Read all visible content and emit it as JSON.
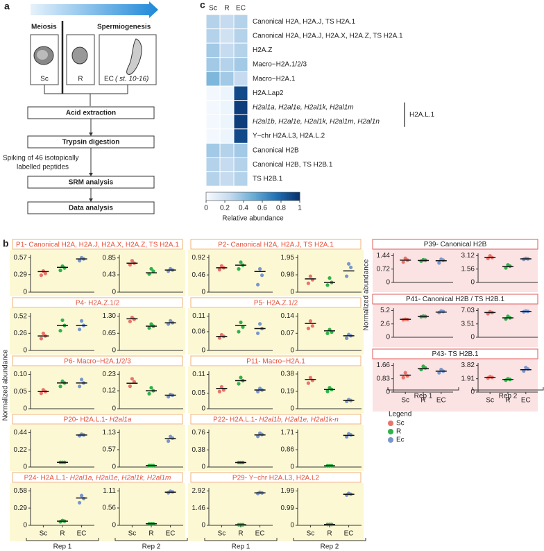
{
  "panel_a": {
    "label": "a",
    "stages": [
      "Meiosis",
      "Spermiogenesis"
    ],
    "cells": [
      "Sc",
      "R",
      "EC"
    ],
    "cell_note": "( st. 10-16)",
    "steps": [
      "Acid extraction",
      "Trypsin digestion",
      "SRM analysis",
      "Data analysis"
    ],
    "spiking": [
      "Spiking of 46 isotopically",
      "labelled peptides"
    ]
  },
  "heatmap": {
    "label": "c",
    "columns": [
      "Sc",
      "R",
      "EC"
    ],
    "rows": [
      {
        "label": "Canonical H2A, H2A.J, TS H2A.1",
        "values": [
          0.3,
          0.25,
          0.3
        ]
      },
      {
        "label": "Canonical H2A, H2A.J, H2A.X, H2A.Z, TS H2A.1",
        "values": [
          0.3,
          0.2,
          0.3
        ]
      },
      {
        "label": "H2A.Z",
        "values": [
          0.35,
          0.25,
          0.3
        ]
      },
      {
        "label": "Macro−H2A.1/2/3",
        "values": [
          0.35,
          0.3,
          0.35
        ]
      },
      {
        "label": "Macro−H2A.1",
        "values": [
          0.45,
          0.35,
          0.25
        ]
      },
      {
        "label": "H2A.Lap2",
        "values": [
          0.02,
          0.05,
          0.9
        ]
      },
      {
        "label": "H2al1a, H2al1e, H2al1k, H2al1m",
        "italic": true,
        "values": [
          0.02,
          0.05,
          0.95
        ]
      },
      {
        "label": "H2al1b, H2al1e, H2al1k, H2al1m, H2al1n",
        "italic": true,
        "values": [
          0.02,
          0.05,
          0.95
        ]
      },
      {
        "label": "Y−chr H2A.L3, H2A.L.2",
        "values": [
          0.02,
          0.05,
          0.9
        ]
      },
      {
        "label": "Canonical H2B",
        "values": [
          0.35,
          0.3,
          0.35
        ]
      },
      {
        "label": "Canonical H2B, TS H2B.1",
        "values": [
          0.3,
          0.25,
          0.3
        ]
      },
      {
        "label": "TS H2B.1",
        "values": [
          0.3,
          0.25,
          0.3
        ]
      }
    ],
    "bracket": {
      "label": "H2A.L.1",
      "rows": [
        6,
        7
      ]
    },
    "colorbar": {
      "title": "Relative abundance",
      "lim": [
        0,
        1
      ],
      "ticks": [
        0,
        0.2,
        0.4,
        0.6,
        0.8,
        1
      ],
      "colormap": [
        "#f7fbff",
        "#c6dbef",
        "#6baed6",
        "#2171b5",
        "#08306b"
      ]
    }
  },
  "panel_b": {
    "label": "b",
    "y_label": "Normalized abundance",
    "categories": [
      "Sc",
      "R",
      "EC"
    ],
    "replicates": [
      "Rep 1",
      "Rep 2"
    ],
    "legend": {
      "title": "Legend",
      "entries": [
        {
          "name": "Sc",
          "color": "#e8746a"
        },
        {
          "name": "R",
          "color": "#2fb24a"
        },
        {
          "name": "Ec",
          "color": "#7a96cc"
        }
      ]
    },
    "groups": [
      {
        "title": "P1- Canonical H2A, H2A.J, H2A.X, H2A.Z, TS H2A.1",
        "panels": [
          {
            "ylim": [
              0,
              0.62
            ],
            "yticks": [
              0,
              0.29,
              0.57
            ],
            "series": [
              [
                0.28,
                0.31,
                0.35
              ],
              [
                0.36,
                0.4,
                0.43
              ],
              [
                0.52,
                0.55,
                0.57
              ]
            ],
            "means": [
              0.34,
              0.41,
              0.55
            ]
          },
          {
            "ylim": [
              0,
              0.93
            ],
            "yticks": [
              0,
              0.43,
              0.85
            ],
            "series": [
              [
                0.68,
                0.72,
                0.78
              ],
              [
                0.45,
                0.52,
                0.58
              ],
              [
                0.52,
                0.55,
                0.58
              ]
            ],
            "means": [
              0.72,
              0.48,
              0.55
            ]
          }
        ]
      },
      {
        "title": "P2- Canonical H2A, H2A.J, TS H2A.1",
        "panels": [
          {
            "ylim": [
              0,
              1.0
            ],
            "yticks": [
              0,
              0.46,
              0.92
            ],
            "series": [
              [
                0.6,
                0.65,
                0.7
              ],
              [
                0.62,
                0.72,
                0.8
              ],
              [
                0.2,
                0.45,
                0.62
              ]
            ],
            "means": [
              0.65,
              0.72,
              0.55
            ]
          },
          {
            "ylim": [
              0,
              2.12
            ],
            "yticks": [
              0,
              0.98,
              1.95
            ],
            "series": [
              [
                0.5,
                0.7,
                0.9
              ],
              [
                0.4,
                0.55,
                0.8
              ],
              [
                0.9,
                1.4,
                1.6
              ]
            ],
            "means": [
              0.75,
              0.55,
              1.2
            ]
          }
        ]
      },
      {
        "title": "P4- H2A.Z.1/2",
        "panels": [
          {
            "ylim": [
              0,
              0.57
            ],
            "yticks": [
              0,
              0.26,
              0.52
            ],
            "series": [
              [
                0.18,
                0.22,
                0.26
              ],
              [
                0.3,
                0.38,
                0.46
              ],
              [
                0.32,
                0.38,
                0.45
              ]
            ],
            "means": [
              0.22,
              0.38,
              0.38
            ]
          },
          {
            "ylim": [
              0,
              1.42
            ],
            "yticks": [
              0,
              0.65,
              {
                "value": 1.3,
                "label": "1.30"
              }
            ],
            "series": [
              [
                1.1,
                1.18,
                1.25
              ],
              [
                0.85,
                0.92,
                1.0
              ],
              [
                1.0,
                1.05,
                1.12
              ]
            ],
            "means": [
              1.2,
              0.92,
              1.05
            ]
          }
        ]
      },
      {
        "title": "P5- H2A.Z.1/2",
        "panels": [
          {
            "ylim": [
              0,
              0.12
            ],
            "yticks": [
              0,
              0.06,
              0.11
            ],
            "series": [
              [
                0.04,
                0.045,
                0.05
              ],
              [
                0.06,
                0.075,
                0.09
              ],
              [
                0.055,
                0.07,
                0.085
              ]
            ],
            "means": [
              0.045,
              0.08,
              0.07
            ]
          },
          {
            "ylim": [
              0,
              0.153
            ],
            "yticks": [
              0,
              0.07,
              0.14
            ],
            "series": [
              [
                0.09,
                0.1,
                0.12
              ],
              [
                0.07,
                0.075,
                0.085
              ],
              [
                0.05,
                0.06,
                0.065
              ]
            ],
            "means": [
              0.11,
              0.08,
              0.06
            ]
          }
        ]
      },
      {
        "title": "P6- Macro−H2A.1/2/3",
        "panels": [
          {
            "ylim": [
              0,
              0.109
            ],
            "yticks": [
              0,
              0.05,
              {
                "value": 0.1,
                "label": "0.10"
              }
            ],
            "series": [
              [
                0.045,
                0.05,
                0.055
              ],
              [
                0.065,
                0.075,
                0.08
              ],
              [
                0.065,
                0.075,
                0.085
              ]
            ],
            "means": [
              0.05,
              0.075,
              0.075
            ]
          },
          {
            "ylim": [
              0,
              0.25
            ],
            "yticks": [
              0,
              0.12,
              0.23
            ],
            "series": [
              [
                0.15,
                0.18,
                0.2
              ],
              [
                0.1,
                0.12,
                0.14
              ],
              [
                0.08,
                0.09,
                0.095
              ]
            ],
            "means": [
              0.17,
              0.12,
              0.09
            ]
          }
        ]
      },
      {
        "title": "P11- Macro−H2A.1",
        "panels": [
          {
            "ylim": [
              0,
              0.12
            ],
            "yticks": [
              0,
              0.05,
              0.11
            ],
            "series": [
              [
                0.055,
                0.06,
                0.07
              ],
              [
                0.08,
                0.09,
                0.1
              ],
              [
                0.055,
                0.06,
                0.065
              ]
            ],
            "means": [
              0.065,
              0.09,
              0.06
            ]
          },
          {
            "ylim": [
              0,
              0.41
            ],
            "yticks": [
              0,
              0.19,
              0.38
            ],
            "series": [
              [
                0.28,
                0.31,
                0.34
              ],
              [
                0.19,
                0.21,
                0.23
              ],
              [
                0.08,
                0.09,
                0.1
              ]
            ],
            "means": [
              0.32,
              0.21,
              0.09
            ]
          }
        ]
      },
      {
        "title": "P20- H2A.L.1- ",
        "title_italic": "H2al1a",
        "panels": [
          {
            "ylim": [
              0,
              0.48
            ],
            "yticks": [
              0,
              0.22,
              0.44
            ],
            "series": [
              [],
              [
                0.06,
                0.06,
                0.06
              ],
              [
                0.4,
                0.41,
                0.42
              ]
            ],
            "means": [
              null,
              0.06,
              0.41
            ]
          },
          {
            "ylim": [
              0,
              1.23
            ],
            "yticks": [
              0,
              0.57,
              1.13
            ],
            "series": [
              [],
              [
                0.05,
                0.05,
                0.05
              ],
              [
                0.85,
                0.95,
                1.0
              ]
            ],
            "means": [
              null,
              0.05,
              0.93
            ]
          }
        ]
      },
      {
        "title": "P22- H2A.L.1- ",
        "title_italic": "H2al1b, H2al1e, H2al1k-n",
        "panels": [
          {
            "ylim": [
              0,
              0.83
            ],
            "yticks": [
              0,
              0.38,
              0.76
            ],
            "series": [
              [],
              [
                0.1,
                0.1,
                0.1
              ],
              [
                0.68,
                0.72,
                0.75
              ]
            ],
            "means": [
              null,
              0.1,
              0.71
            ]
          },
          {
            "ylim": [
              0,
              1.86
            ],
            "yticks": [
              0,
              0.86,
              1.71
            ],
            "series": [
              [],
              [
                0.06,
                0.06,
                0.06
              ],
              [
                1.5,
                1.6,
                1.65
              ]
            ],
            "means": [
              null,
              0.06,
              1.57
            ]
          }
        ]
      },
      {
        "title": "P24- H2A.L.1- ",
        "title_italic": "H2al1a, H2al1e, H2al1k, H2al1m",
        "panels": [
          {
            "ylim": [
              0,
              0.63
            ],
            "yticks": [
              0,
              0.29,
              0.58
            ],
            "series": [
              [],
              [
                0.06,
                0.07,
                0.08
              ],
              [
                0.38,
                0.45,
                0.5
              ]
            ],
            "means": [
              null,
              0.07,
              0.46
            ]
          },
          {
            "ylim": [
              0,
              1.21
            ],
            "yticks": [
              0,
              0.56,
              1.11
            ],
            "series": [
              [],
              [
                0.05,
                0.05,
                0.05
              ],
              [
                1.05,
                1.08,
                1.1
              ]
            ],
            "means": [
              null,
              0.05,
              1.07
            ]
          }
        ]
      },
      {
        "title": "P29- Y−chr H2A.L3, H2A.L2",
        "panels": [
          {
            "ylim": [
              0,
              3.18
            ],
            "yticks": [
              0,
              1.46,
              2.92
            ],
            "series": [
              [],
              [
                0.05,
                0.05,
                0.05
              ],
              [
                2.7,
                2.75,
                2.8
              ]
            ],
            "means": [
              null,
              0.05,
              2.75
            ]
          },
          {
            "ylim": [
              0,
              2.17
            ],
            "yticks": [
              0,
              0.99,
              1.99
            ],
            "series": [
              [],
              [
                0.05,
                0.05,
                0.05
              ],
              [
                1.75,
                1.8,
                1.85
              ]
            ],
            "means": [
              null,
              0.05,
              1.8
            ]
          }
        ]
      }
    ],
    "side_groups": [
      {
        "title": "P39- Canonical H2B",
        "panels": [
          {
            "ylim": [
              0,
              1.57
            ],
            "yticks": [
              0,
              0.72,
              1.44
            ],
            "series": [
              [
                1.1,
                1.2,
                1.3
              ],
              [
                1.15,
                1.2,
                1.22
              ],
              [
                1.05,
                1.2,
                1.25
              ]
            ],
            "means": [
              1.2,
              1.18,
              1.17
            ]
          },
          {
            "ylim": [
              0,
              3.4
            ],
            "yticks": [
              0,
              1.56,
              3.12
            ],
            "series": [
              [
                2.8,
                2.9,
                3.1
              ],
              [
                1.7,
                1.9,
                2.05
              ],
              [
                2.7,
                2.75,
                2.8
              ]
            ],
            "means": [
              2.9,
              1.85,
              2.75
            ]
          }
        ]
      },
      {
        "title": "P41- Canonical H2B / TS H2B.1",
        "panels": [
          {
            "ylim": [
              0,
              5.67
            ],
            "yticks": [
              0,
              2.6,
              5.2
            ],
            "series": [
              [
                3.4,
                3.45,
                3.5
              ],
              [
                4.0,
                4.05,
                4.1
              ],
              [
                4.8,
                5.0,
                5.1
              ]
            ],
            "means": [
              3.5,
              4.05,
              4.9
            ]
          },
          {
            "ylim": [
              0,
              7.66
            ],
            "yticks": [
              0,
              3.51,
              7.03
            ],
            "series": [
              [
                6.2,
                6.5,
                6.7
              ],
              [
                4.8,
                5.1,
                5.5
              ],
              [
                6.7,
                6.8,
                6.9
              ]
            ],
            "means": [
              6.5,
              5.1,
              6.8
            ]
          }
        ]
      },
      {
        "title": "P43- TS H2B.1",
        "panels": [
          {
            "ylim": [
              0,
              1.81
            ],
            "yticks": [
              0,
              0.83,
              1.66
            ],
            "series": [
              [
                0.9,
                1.0,
                1.2
              ],
              [
                1.4,
                1.5,
                1.6
              ],
              [
                1.2,
                1.3,
                1.4
              ]
            ],
            "means": [
              1.05,
              1.45,
              1.3
            ]
          },
          {
            "ylim": [
              0,
              4.16
            ],
            "yticks": [
              0,
              1.91,
              3.82
            ],
            "series": [
              [
                2.0,
                2.1,
                2.2
              ],
              [
                1.7,
                1.8,
                1.9
              ],
              [
                3.0,
                3.3,
                3.5
              ]
            ],
            "means": [
              2.1,
              1.8,
              3.2
            ]
          }
        ]
      }
    ]
  }
}
